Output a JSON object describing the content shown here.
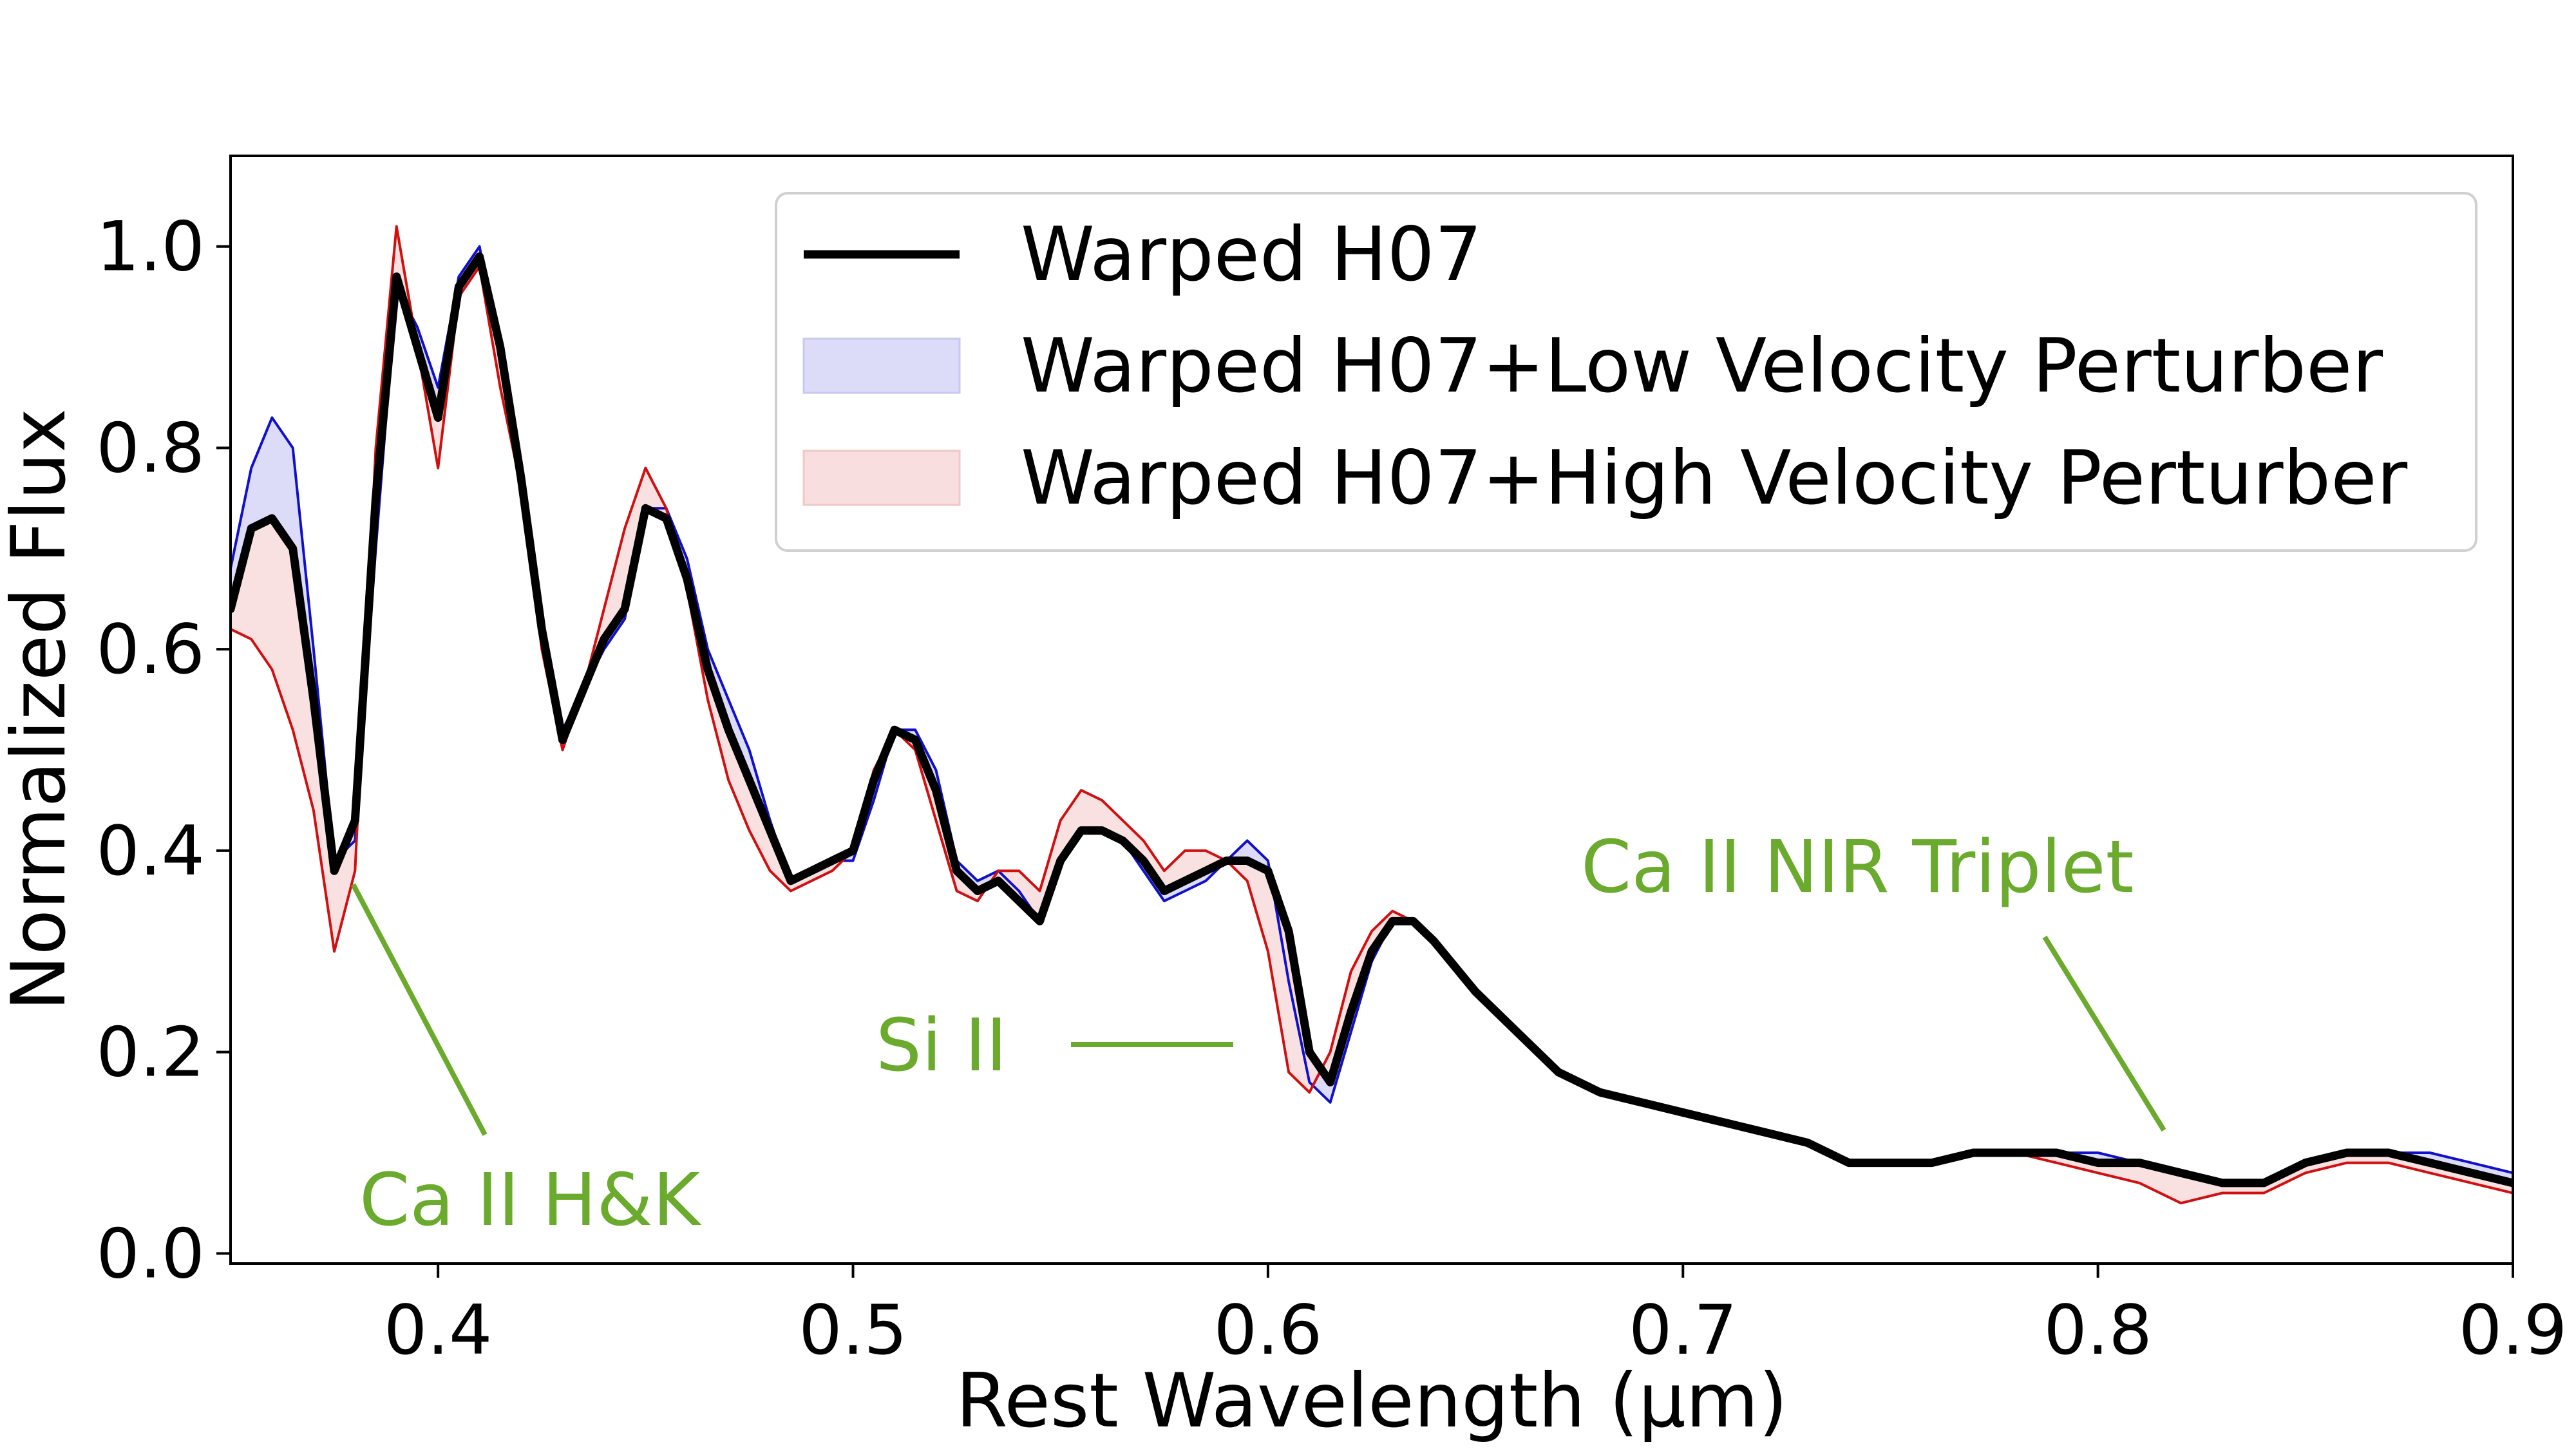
{
  "chart_data": {
    "type": "line",
    "title": "",
    "xlabel": "Rest Wavelength (μm)",
    "ylabel": "Normalized Flux",
    "xlim": [
      0.35,
      0.9
    ],
    "ylim": [
      -0.01,
      1.09
    ],
    "x_ticks": [
      0.4,
      0.5,
      0.6,
      0.7,
      0.8,
      0.9
    ],
    "x_tick_labels": [
      "0.4",
      "0.5",
      "0.6",
      "0.7",
      "0.8",
      "0.9"
    ],
    "y_ticks": [
      0.0,
      0.2,
      0.4,
      0.6,
      0.8,
      1.0
    ],
    "y_tick_labels": [
      "0.0",
      "0.2",
      "0.4",
      "0.6",
      "0.8",
      "1.0"
    ],
    "grid": false,
    "legend_position": "top-right",
    "colors": {
      "warped": "#000000",
      "low_line": "#1010cc",
      "low_fill": "#dcdcf8",
      "high_line": "#d01010",
      "high_fill": "#f8dede",
      "annotation": "#6aaa2c"
    },
    "x": [
      0.35,
      0.355,
      0.36,
      0.365,
      0.37,
      0.375,
      0.38,
      0.385,
      0.39,
      0.395,
      0.4,
      0.405,
      0.41,
      0.415,
      0.42,
      0.425,
      0.43,
      0.435,
      0.44,
      0.445,
      0.45,
      0.455,
      0.46,
      0.465,
      0.47,
      0.475,
      0.48,
      0.485,
      0.49,
      0.495,
      0.5,
      0.505,
      0.51,
      0.515,
      0.52,
      0.525,
      0.53,
      0.535,
      0.54,
      0.545,
      0.55,
      0.555,
      0.56,
      0.565,
      0.57,
      0.575,
      0.58,
      0.585,
      0.59,
      0.595,
      0.6,
      0.605,
      0.61,
      0.615,
      0.62,
      0.625,
      0.63,
      0.635,
      0.64,
      0.65,
      0.66,
      0.67,
      0.68,
      0.69,
      0.7,
      0.71,
      0.72,
      0.73,
      0.74,
      0.75,
      0.76,
      0.77,
      0.78,
      0.79,
      0.8,
      0.81,
      0.82,
      0.83,
      0.84,
      0.85,
      0.86,
      0.87,
      0.88,
      0.89,
      0.9
    ],
    "series": [
      {
        "name": "Warped H07",
        "values": [
          0.64,
          0.72,
          0.73,
          0.7,
          0.55,
          0.38,
          0.43,
          0.75,
          0.97,
          0.9,
          0.83,
          0.96,
          0.99,
          0.9,
          0.77,
          0.62,
          0.51,
          0.56,
          0.61,
          0.64,
          0.74,
          0.73,
          0.67,
          0.58,
          0.52,
          0.47,
          0.42,
          0.37,
          0.38,
          0.39,
          0.4,
          0.47,
          0.52,
          0.51,
          0.46,
          0.38,
          0.36,
          0.37,
          0.35,
          0.33,
          0.39,
          0.42,
          0.42,
          0.41,
          0.39,
          0.36,
          0.37,
          0.38,
          0.39,
          0.39,
          0.38,
          0.32,
          0.2,
          0.17,
          0.24,
          0.3,
          0.33,
          0.33,
          0.31,
          0.26,
          0.22,
          0.18,
          0.16,
          0.15,
          0.14,
          0.13,
          0.12,
          0.11,
          0.09,
          0.09,
          0.09,
          0.1,
          0.1,
          0.1,
          0.09,
          0.09,
          0.08,
          0.07,
          0.07,
          0.09,
          0.1,
          0.1,
          0.09,
          0.08,
          0.07
        ]
      },
      {
        "name": "Warped H07+Low Velocity Perturber",
        "values": [
          0.68,
          0.78,
          0.83,
          0.8,
          0.6,
          0.39,
          0.41,
          0.7,
          0.96,
          0.92,
          0.86,
          0.97,
          1.0,
          0.89,
          0.77,
          0.62,
          0.52,
          0.56,
          0.6,
          0.63,
          0.74,
          0.74,
          0.69,
          0.6,
          0.55,
          0.5,
          0.43,
          0.37,
          0.38,
          0.39,
          0.39,
          0.45,
          0.52,
          0.52,
          0.48,
          0.39,
          0.37,
          0.38,
          0.36,
          0.33,
          0.39,
          0.42,
          0.42,
          0.41,
          0.38,
          0.35,
          0.36,
          0.37,
          0.39,
          0.41,
          0.39,
          0.27,
          0.17,
          0.15,
          0.22,
          0.29,
          0.33,
          0.33,
          0.31,
          0.26,
          0.22,
          0.18,
          0.16,
          0.15,
          0.14,
          0.13,
          0.12,
          0.11,
          0.09,
          0.09,
          0.09,
          0.1,
          0.1,
          0.1,
          0.1,
          0.09,
          0.08,
          0.07,
          0.07,
          0.09,
          0.1,
          0.1,
          0.1,
          0.09,
          0.08
        ]
      },
      {
        "name": "Warped H07+High Velocity Perturber",
        "values": [
          0.62,
          0.61,
          0.58,
          0.52,
          0.44,
          0.3,
          0.38,
          0.8,
          1.02,
          0.9,
          0.78,
          0.95,
          0.98,
          0.86,
          0.76,
          0.6,
          0.5,
          0.56,
          0.64,
          0.72,
          0.78,
          0.74,
          0.66,
          0.55,
          0.47,
          0.42,
          0.38,
          0.36,
          0.37,
          0.38,
          0.4,
          0.48,
          0.52,
          0.5,
          0.43,
          0.36,
          0.35,
          0.38,
          0.38,
          0.36,
          0.43,
          0.46,
          0.45,
          0.43,
          0.41,
          0.38,
          0.4,
          0.4,
          0.39,
          0.37,
          0.3,
          0.18,
          0.16,
          0.2,
          0.28,
          0.32,
          0.34,
          0.33,
          0.31,
          0.26,
          0.22,
          0.18,
          0.16,
          0.15,
          0.14,
          0.13,
          0.12,
          0.11,
          0.09,
          0.09,
          0.09,
          0.1,
          0.1,
          0.09,
          0.08,
          0.07,
          0.05,
          0.06,
          0.06,
          0.08,
          0.09,
          0.09,
          0.08,
          0.07,
          0.06
        ]
      }
    ],
    "annotations": [
      {
        "text": "Ca II H&K",
        "target_x": 0.378,
        "target_y": 0.36
      },
      {
        "text": "Si II",
        "target_x": 0.593,
        "target_y": 0.215
      },
      {
        "text": "Ca II NIR Triplet",
        "target_x": 0.817,
        "target_y": 0.13
      }
    ]
  }
}
